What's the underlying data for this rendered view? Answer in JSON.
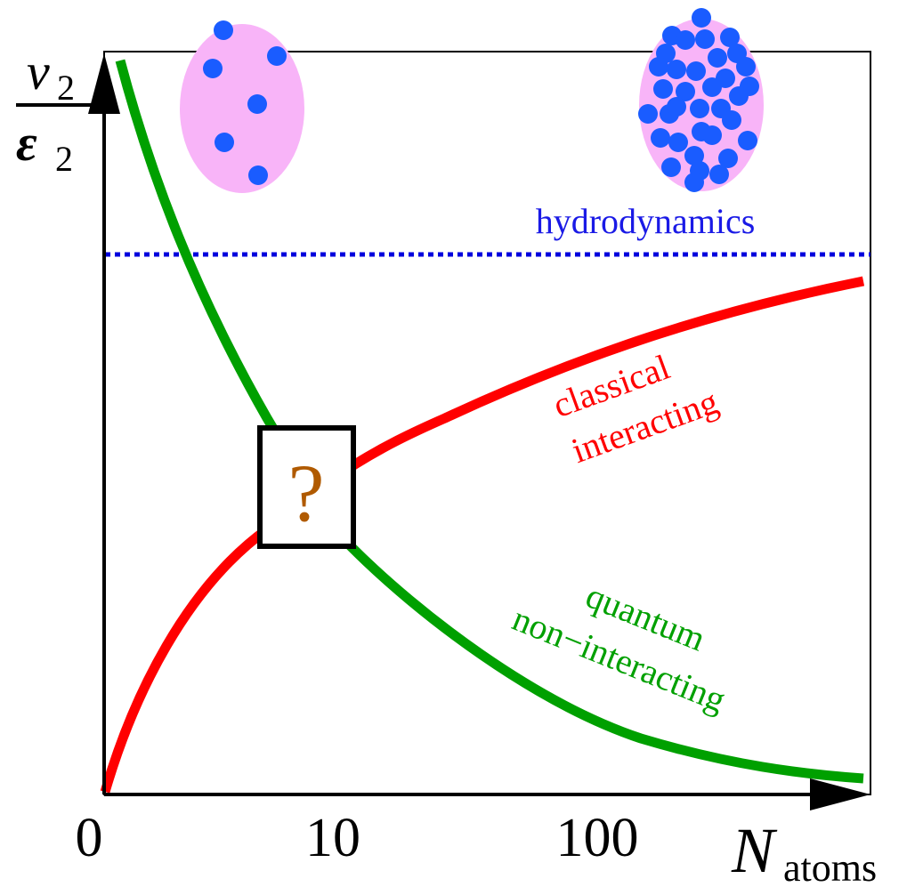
{
  "axes": {
    "y_label": {
      "numerator": "v",
      "numerator_sub": "2",
      "denominator": "ε",
      "denominator_sub": "2"
    },
    "x_label": {
      "main": "N",
      "sub": "atoms"
    },
    "x_ticks": [
      "0",
      "10",
      "100"
    ]
  },
  "labels": {
    "hydrodynamics": "hydrodynamics",
    "classical": [
      "classical",
      "interacting"
    ],
    "quantum": [
      "quantum",
      "non−interacting"
    ],
    "unknown": "?"
  }
}
